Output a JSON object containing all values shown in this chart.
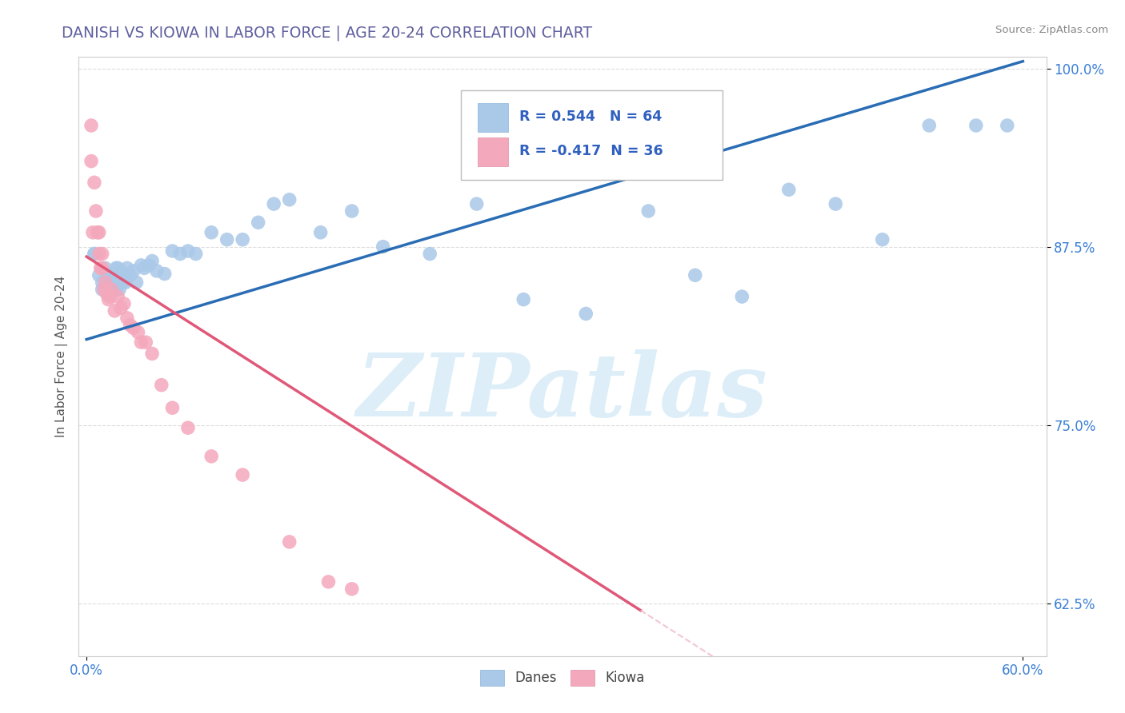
{
  "title": "DANISH VS KIOWA IN LABOR FORCE | AGE 20-24 CORRELATION CHART",
  "source_text": "Source: ZipAtlas.com",
  "xlabel": "",
  "ylabel": "In Labor Force | Age 20-24",
  "xlim": [
    -0.005,
    0.615
  ],
  "ylim": [
    0.588,
    1.008
  ],
  "yticks": [
    0.625,
    0.75,
    0.875,
    1.0
  ],
  "ytick_labels": [
    "62.5%",
    "75.0%",
    "87.5%",
    "100.0%"
  ],
  "xticks": [
    0.0,
    0.6
  ],
  "xtick_labels": [
    "0.0%",
    "60.0%"
  ],
  "danes_R": 0.544,
  "danes_N": 64,
  "kiowa_R": -0.417,
  "kiowa_N": 36,
  "danes_color": "#aac8e8",
  "kiowa_color": "#f4a8bc",
  "danes_line_color": "#2a6db5",
  "kiowa_line_color": "#e05878",
  "kiowa_line_dashed_color": "#f0b8c8",
  "title_color": "#6060a0",
  "source_color": "#888888",
  "legend_text_color_blue": "#3060c0",
  "legend_text_color_black": "#222222",
  "watermark_color": "#ddeef8",
  "watermark_text": "ZIPatlas",
  "background_color": "#ffffff",
  "grid_color": "#dddddd",
  "danes_scatter_x": [
    0.005,
    0.005,
    0.008,
    0.01,
    0.01,
    0.012,
    0.013,
    0.014,
    0.014,
    0.015,
    0.015,
    0.015,
    0.016,
    0.016,
    0.017,
    0.017,
    0.018,
    0.018,
    0.019,
    0.019,
    0.02,
    0.02,
    0.021,
    0.022,
    0.022,
    0.023,
    0.024,
    0.025,
    0.026,
    0.028,
    0.03,
    0.032,
    0.035,
    0.037,
    0.04,
    0.042,
    0.045,
    0.05,
    0.055,
    0.06,
    0.065,
    0.07,
    0.08,
    0.09,
    0.1,
    0.11,
    0.12,
    0.13,
    0.15,
    0.17,
    0.19,
    0.22,
    0.25,
    0.28,
    0.32,
    0.36,
    0.39,
    0.42,
    0.45,
    0.48,
    0.51,
    0.54,
    0.57,
    0.59
  ],
  "danes_scatter_y": [
    0.87,
    0.87,
    0.855,
    0.845,
    0.85,
    0.86,
    0.855,
    0.85,
    0.855,
    0.855,
    0.848,
    0.848,
    0.85,
    0.853,
    0.852,
    0.856,
    0.848,
    0.85,
    0.845,
    0.86,
    0.86,
    0.855,
    0.845,
    0.855,
    0.858,
    0.85,
    0.855,
    0.85,
    0.86,
    0.855,
    0.858,
    0.85,
    0.862,
    0.86,
    0.862,
    0.865,
    0.858,
    0.856,
    0.872,
    0.87,
    0.872,
    0.87,
    0.885,
    0.88,
    0.88,
    0.892,
    0.905,
    0.908,
    0.885,
    0.9,
    0.875,
    0.87,
    0.905,
    0.838,
    0.828,
    0.9,
    0.855,
    0.84,
    0.915,
    0.905,
    0.88,
    0.96,
    0.96,
    0.96
  ],
  "kiowa_scatter_x": [
    0.003,
    0.003,
    0.004,
    0.005,
    0.006,
    0.007,
    0.008,
    0.008,
    0.009,
    0.01,
    0.01,
    0.011,
    0.012,
    0.013,
    0.014,
    0.015,
    0.016,
    0.018,
    0.02,
    0.022,
    0.024,
    0.026,
    0.028,
    0.03,
    0.033,
    0.035,
    0.038,
    0.042,
    0.048,
    0.055,
    0.065,
    0.08,
    0.1,
    0.13,
    0.155,
    0.17
  ],
  "kiowa_scatter_y": [
    0.935,
    0.96,
    0.885,
    0.92,
    0.9,
    0.885,
    0.885,
    0.87,
    0.86,
    0.87,
    0.86,
    0.845,
    0.85,
    0.842,
    0.838,
    0.84,
    0.845,
    0.83,
    0.84,
    0.832,
    0.835,
    0.825,
    0.82,
    0.818,
    0.815,
    0.808,
    0.808,
    0.8,
    0.778,
    0.762,
    0.748,
    0.728,
    0.715,
    0.668,
    0.64,
    0.635
  ],
  "danes_line_x0": 0.0,
  "danes_line_x1": 0.6,
  "danes_line_y0": 0.81,
  "danes_line_y1": 1.005,
  "kiowa_line_solid_x0": 0.0,
  "kiowa_line_solid_x1": 0.355,
  "kiowa_line_y0": 0.868,
  "kiowa_line_y1": 0.62,
  "kiowa_line_dashed_x0": 0.355,
  "kiowa_line_dashed_x1": 0.6
}
